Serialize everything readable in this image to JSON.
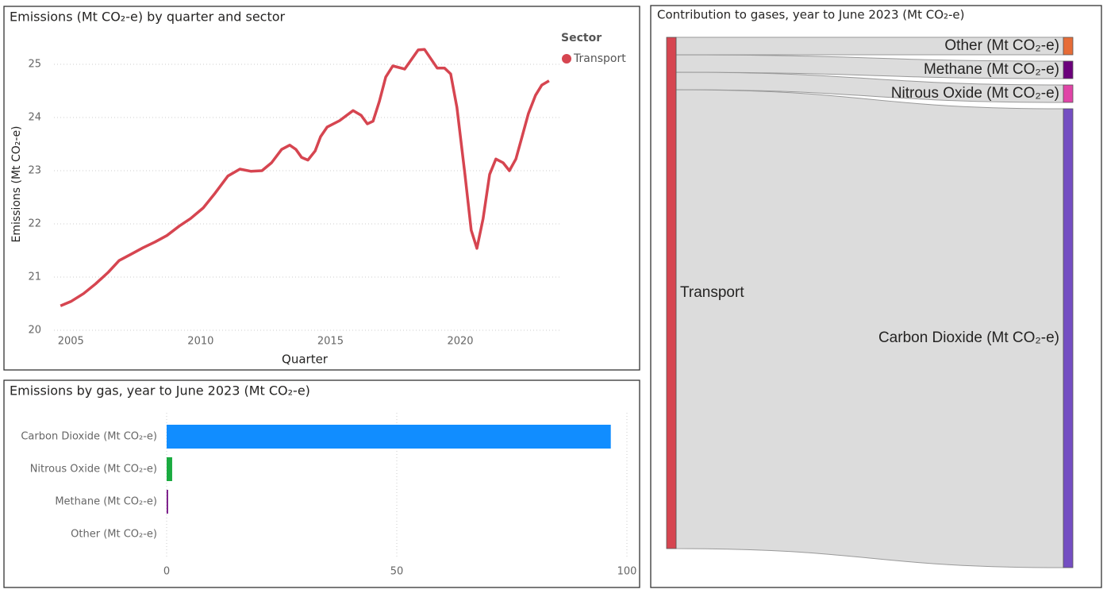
{
  "chart_data": [
    {
      "type": "line",
      "title": "Emissions (Mt CO₂-e) by quarter and sector",
      "x_label": "Quarter",
      "y_label": "Emissions (Mt CO₂-e)",
      "legend_title": "Sector",
      "legend": "top-right",
      "grid": true,
      "xlim": [
        2004.35,
        2023.85
      ],
      "xticks": [
        2005,
        2010,
        2015,
        2020
      ],
      "ylim": [
        20,
        25.5
      ],
      "yticks": [
        20,
        21,
        22,
        23,
        24,
        25
      ],
      "x": [
        2004.6,
        2005.0,
        2005.49,
        2005.95,
        2006.44,
        2006.86,
        2007.32,
        2007.78,
        2008.24,
        2008.7,
        2009.18,
        2009.61,
        2010.1,
        2010.56,
        2011.05,
        2011.51,
        2011.93,
        2012.36,
        2012.73,
        2013.12,
        2013.43,
        2013.67,
        2013.89,
        2014.13,
        2014.41,
        2014.62,
        2014.87,
        2015.35,
        2015.87,
        2016.18,
        2016.42,
        2016.64,
        2016.88,
        2017.13,
        2017.4,
        2017.86,
        2018.38,
        2018.62,
        2019.11,
        2019.39,
        2019.63,
        2019.87,
        2020.18,
        2020.42,
        2020.64,
        2020.88,
        2021.13,
        2021.37,
        2021.65,
        2021.89,
        2022.14,
        2022.38,
        2022.62,
        2022.9,
        2023.14,
        2023.42
      ],
      "series": [
        {
          "name": "Transport",
          "color": "#d64550",
          "values": [
            20.46,
            20.54,
            20.69,
            20.87,
            21.09,
            21.31,
            21.43,
            21.55,
            21.66,
            21.78,
            21.96,
            22.1,
            22.3,
            22.58,
            22.9,
            23.03,
            22.99,
            23.0,
            23.15,
            23.4,
            23.48,
            23.4,
            23.25,
            23.2,
            23.37,
            23.64,
            23.82,
            23.94,
            24.13,
            24.04,
            23.88,
            23.93,
            24.3,
            24.76,
            24.97,
            24.91,
            25.27,
            25.28,
            24.93,
            24.93,
            24.82,
            24.19,
            22.93,
            21.88,
            21.54,
            22.1,
            22.93,
            23.22,
            23.15,
            23.0,
            23.22,
            23.64,
            24.07,
            24.42,
            24.61,
            24.69
          ]
        }
      ]
    },
    {
      "type": "bar",
      "orientation": "horizontal",
      "title": "Emissions by gas, year to June 2023 (Mt CO₂-e)",
      "grid": true,
      "xlim": [
        0,
        100
      ],
      "xticks": [
        0,
        50,
        100
      ],
      "categories": [
        "Carbon Dioxide (Mt CO₂-e)",
        "Nitrous Oxide (Mt CO₂-e)",
        "Methane (Mt CO₂-e)",
        "Other (Mt CO₂-e)"
      ],
      "values": [
        96.5,
        1.2,
        0.3,
        0
      ],
      "colors": [
        "#118dff",
        "#1aab40",
        "#6b007b",
        "#e66c37"
      ]
    },
    {
      "type": "sankey",
      "title": "Contribution to gases, year to June 2023 (Mt CO₂-e)",
      "source": {
        "name": "Transport",
        "color": "#d64550"
      },
      "targets": [
        {
          "name": "Other (Mt CO₂-e)",
          "color": "#e66c37",
          "value": 0
        },
        {
          "name": "Methane (Mt CO₂-e)",
          "color": "#6b007b",
          "value": 0.3
        },
        {
          "name": "Nitrous Oxide (Mt CO₂-e)",
          "color": "#e044a7",
          "value": 1.2
        },
        {
          "name": "Carbon Dioxide (Mt CO₂-e)",
          "color": "#744ec2",
          "value": 96.5
        }
      ]
    }
  ]
}
